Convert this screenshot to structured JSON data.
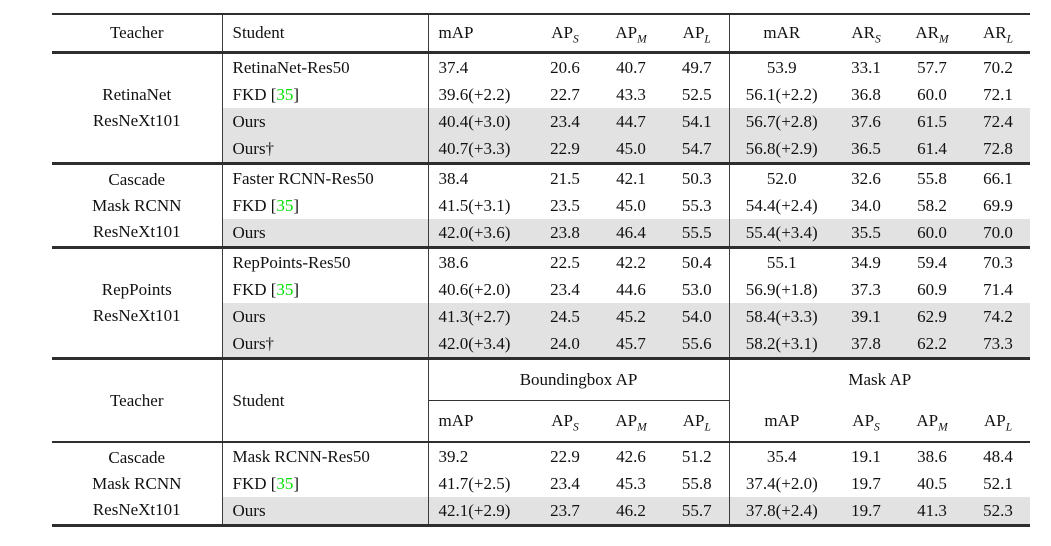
{
  "colors": {
    "citation_green": "#00e000",
    "row_shade": "#e2e2e2",
    "rule_color": "#2e2e2e"
  },
  "top_table": {
    "header": {
      "teacher": "Teacher",
      "student": "Student",
      "cols": [
        {
          "t": "mAP",
          "s": ""
        },
        {
          "t": "AP",
          "s": "S"
        },
        {
          "t": "AP",
          "s": "M"
        },
        {
          "t": "AP",
          "s": "L"
        },
        {
          "t": "mAR",
          "s": ""
        },
        {
          "t": "AR",
          "s": "S"
        },
        {
          "t": "AR",
          "s": "M"
        },
        {
          "t": "AR",
          "s": "L"
        }
      ]
    },
    "groups": [
      {
        "teacher_lines": [
          "RetinaNet",
          "ResNeXt101"
        ],
        "rows": [
          {
            "student_pre": "RetinaNet-Res50",
            "shaded": false,
            "values": [
              "37.4",
              "20.6",
              "40.7",
              "49.7",
              "53.9",
              "33.1",
              "57.7",
              "70.2"
            ]
          },
          {
            "student_pre": "FKD [",
            "student_cite": "35",
            "student_post": "]",
            "shaded": false,
            "values": [
              "39.6(+2.2)",
              "22.7",
              "43.3",
              "52.5",
              "56.1(+2.2)",
              "36.8",
              "60.0",
              "72.1"
            ]
          },
          {
            "student_pre": "Ours",
            "shaded": true,
            "values": [
              "40.4(+3.0)",
              "23.4",
              "44.7",
              "54.1",
              "56.7(+2.8)",
              "37.6",
              "61.5",
              "72.4"
            ]
          },
          {
            "student_pre": "Ours†",
            "shaded": true,
            "values": [
              "40.7(+3.3)",
              "22.9",
              "45.0",
              "54.7",
              "56.8(+2.9)",
              "36.5",
              "61.4",
              "72.8"
            ]
          }
        ]
      },
      {
        "teacher_lines": [
          "Cascade",
          "Mask RCNN",
          "ResNeXt101"
        ],
        "rows": [
          {
            "student_pre": "Faster RCNN-Res50",
            "shaded": false,
            "values": [
              "38.4",
              "21.5",
              "42.1",
              "50.3",
              "52.0",
              "32.6",
              "55.8",
              "66.1"
            ]
          },
          {
            "student_pre": "FKD [",
            "student_cite": "35",
            "student_post": "]",
            "shaded": false,
            "values": [
              "41.5(+3.1)",
              "23.5",
              "45.0",
              "55.3",
              "54.4(+2.4)",
              "34.0",
              "58.2",
              "69.9"
            ]
          },
          {
            "student_pre": "Ours",
            "shaded": true,
            "values": [
              "42.0(+3.6)",
              "23.8",
              "46.4",
              "55.5",
              "55.4(+3.4)",
              "35.5",
              "60.0",
              "70.0"
            ]
          }
        ]
      },
      {
        "teacher_lines": [
          "RepPoints",
          "ResNeXt101"
        ],
        "rows": [
          {
            "student_pre": "RepPoints-Res50",
            "shaded": false,
            "values": [
              "38.6",
              "22.5",
              "42.2",
              "50.4",
              "55.1",
              "34.9",
              "59.4",
              "70.3"
            ]
          },
          {
            "student_pre": "FKD [",
            "student_cite": "35",
            "student_post": "]",
            "shaded": false,
            "values": [
              "40.6(+2.0)",
              "23.4",
              "44.6",
              "53.0",
              "56.9(+1.8)",
              "37.3",
              "60.9",
              "71.4"
            ]
          },
          {
            "student_pre": "Ours",
            "shaded": true,
            "values": [
              "41.3(+2.7)",
              "24.5",
              "45.2",
              "54.0",
              "58.4(+3.3)",
              "39.1",
              "62.9",
              "74.2"
            ]
          },
          {
            "student_pre": "Ours†",
            "shaded": true,
            "values": [
              "42.0(+3.4)",
              "24.0",
              "45.7",
              "55.6",
              "58.2(+3.1)",
              "37.8",
              "62.2",
              "73.3"
            ]
          }
        ]
      }
    ]
  },
  "bottom_table": {
    "header": {
      "teacher": "Teacher",
      "student": "Student",
      "span_left": "Boundingbox AP",
      "span_right": "Mask AP",
      "cols": [
        {
          "t": "mAP",
          "s": ""
        },
        {
          "t": "AP",
          "s": "S"
        },
        {
          "t": "AP",
          "s": "M"
        },
        {
          "t": "AP",
          "s": "L"
        },
        {
          "t": "mAP",
          "s": ""
        },
        {
          "t": "AP",
          "s": "S"
        },
        {
          "t": "AP",
          "s": "M"
        },
        {
          "t": "AP",
          "s": "L"
        }
      ]
    },
    "groups": [
      {
        "teacher_lines": [
          "Cascade",
          "Mask RCNN",
          "ResNeXt101"
        ],
        "rows": [
          {
            "student_pre": "Mask RCNN-Res50",
            "shaded": false,
            "values": [
              "39.2",
              "22.9",
              "42.6",
              "51.2",
              "35.4",
              "19.1",
              "38.6",
              "48.4"
            ]
          },
          {
            "student_pre": "FKD [",
            "student_cite": "35",
            "student_post": "]",
            "shaded": false,
            "values": [
              "41.7(+2.5)",
              "23.4",
              "45.3",
              "55.8",
              "37.4(+2.0)",
              "19.7",
              "40.5",
              "52.1"
            ]
          },
          {
            "student_pre": "Ours",
            "shaded": true,
            "values": [
              "42.1(+2.9)",
              "23.7",
              "46.2",
              "55.7",
              "37.8(+2.4)",
              "19.7",
              "41.3",
              "52.3"
            ]
          }
        ]
      }
    ]
  }
}
